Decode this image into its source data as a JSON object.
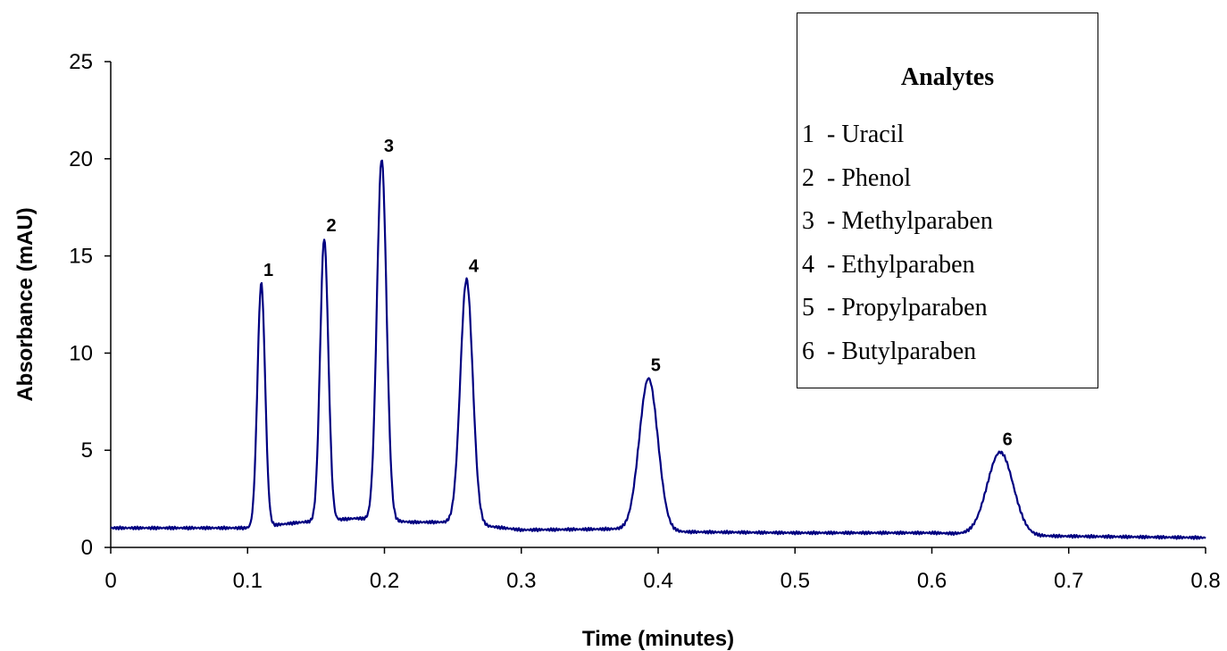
{
  "chart_data": {
    "type": "line",
    "xlabel": "Time (minutes)",
    "ylabel": "Absorbance (mAU)",
    "xlim": [
      0,
      0.8
    ],
    "ylim": [
      0,
      25
    ],
    "x_ticks": [
      "0",
      "0.1",
      "0.2",
      "0.3",
      "0.4",
      "0.5",
      "0.6",
      "0.7",
      "0.8"
    ],
    "y_ticks": [
      "0",
      "5",
      "10",
      "15",
      "20",
      "25"
    ],
    "grid": false,
    "line_color": "#000080",
    "baseline": [
      {
        "x": 0.0,
        "y": 1.0
      },
      {
        "x": 0.1,
        "y": 1.0
      },
      {
        "x": 0.14,
        "y": 1.3
      },
      {
        "x": 0.18,
        "y": 1.5
      },
      {
        "x": 0.22,
        "y": 1.3
      },
      {
        "x": 0.25,
        "y": 1.3
      },
      {
        "x": 0.3,
        "y": 0.9
      },
      {
        "x": 0.37,
        "y": 0.95
      },
      {
        "x": 0.42,
        "y": 0.8
      },
      {
        "x": 0.5,
        "y": 0.75
      },
      {
        "x": 0.6,
        "y": 0.75
      },
      {
        "x": 0.67,
        "y": 0.6
      },
      {
        "x": 0.8,
        "y": 0.5
      }
    ],
    "peaks": [
      {
        "label": "1",
        "x": 0.11,
        "height": 13.6
      },
      {
        "label": "2",
        "x": 0.156,
        "height": 15.9
      },
      {
        "label": "3",
        "x": 0.198,
        "height": 20.0
      },
      {
        "label": "4",
        "x": 0.26,
        "height": 13.8
      },
      {
        "label": "5",
        "x": 0.393,
        "height": 8.7
      },
      {
        "label": "6",
        "x": 0.65,
        "height": 4.9
      }
    ]
  },
  "legend": {
    "title": "Analytes",
    "items": [
      {
        "num": "1",
        "text": "- Uracil"
      },
      {
        "num": "2",
        "text": "- Phenol"
      },
      {
        "num": "3",
        "text": "- Methylparaben"
      },
      {
        "num": "4",
        "text": "- Ethylparaben"
      },
      {
        "num": "5",
        "text": "- Propylparaben"
      },
      {
        "num": "6",
        "text": "- Butylparaben"
      }
    ]
  }
}
